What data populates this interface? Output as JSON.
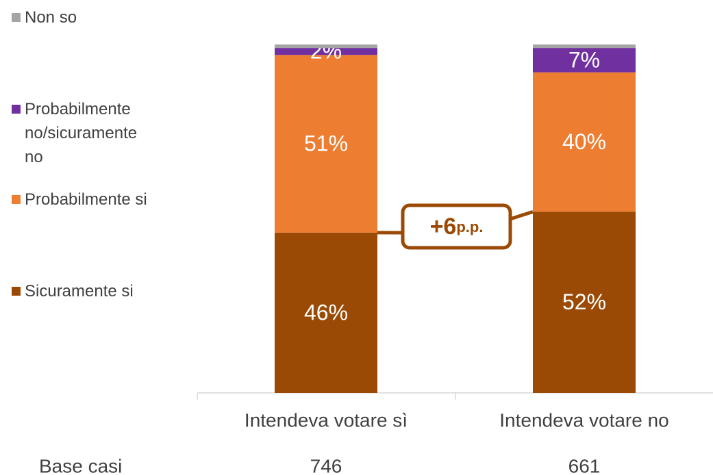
{
  "chart_data": {
    "type": "stacked_bar",
    "categories": [
      "Intendeva votare sì",
      "Intendeva votare no"
    ],
    "series": [
      {
        "name": "Sicuramente si",
        "color": "#9a4a05",
        "values": [
          46,
          52
        ],
        "value_labels": [
          "46%",
          "52%"
        ]
      },
      {
        "name": "Probabilmente si",
        "color": "#ed7d31",
        "values": [
          51,
          40
        ],
        "value_labels": [
          "51%",
          "40%"
        ]
      },
      {
        "name": "Probabilmente no/sicuramente no",
        "color": "#7030a0",
        "values": [
          2,
          7
        ],
        "value_labels": [
          "2%",
          "7%"
        ]
      },
      {
        "name": "Non so",
        "color": "#a5a5a5",
        "values": [
          1,
          1
        ]
      }
    ],
    "ylim": [
      0,
      100
    ],
    "annotation": {
      "value": "+6",
      "unit": "p.p."
    },
    "base_label": "Base casi",
    "base_counts": [
      746,
      661
    ]
  }
}
